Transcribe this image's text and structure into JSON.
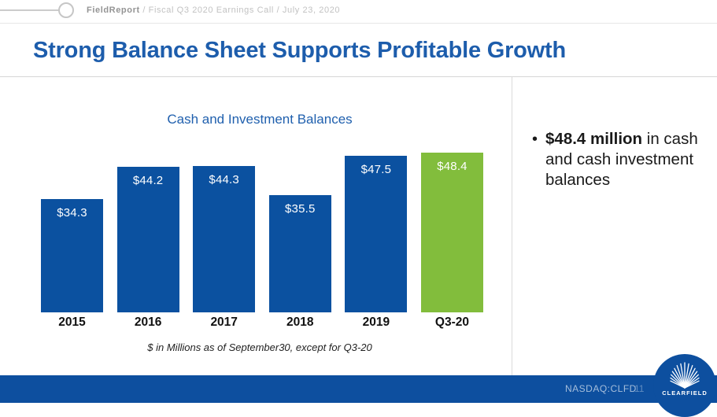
{
  "header": {
    "breadcrumb": {
      "brand": "FieldReport",
      "trail": " / Fiscal Q3 2020 Earnings Call / July 23, 2020"
    },
    "title": "Strong Balance Sheet Supports Profitable Growth"
  },
  "chart_data": {
    "type": "bar",
    "title": "Cash and Investment Balances",
    "categories": [
      "2015",
      "2016",
      "2017",
      "2018",
      "2019",
      "Q3-20"
    ],
    "values": [
      34.3,
      44.2,
      44.3,
      35.5,
      47.5,
      48.4
    ],
    "value_labels": [
      "$34.3",
      "$44.2",
      "$44.3",
      "$35.5",
      "$47.5",
      "$48.4"
    ],
    "bar_colors": [
      "#0b51a0",
      "#0b51a0",
      "#0b51a0",
      "#0b51a0",
      "#0b51a0",
      "#82bd3c"
    ],
    "bar_color": "#0b51a0",
    "highlight_color": "#82bd3c",
    "ylim": [
      0,
      50
    ],
    "grid": false,
    "legend": "none",
    "xlabel": "",
    "ylabel": "",
    "footnote": "$ in Millions as of September30, except for Q3-20"
  },
  "note": {
    "bullet": "•",
    "highlight": "$48.4 million",
    "rest": " in cash and cash investment balances"
  },
  "footer": {
    "ticker": "NASDAQ:CLFD",
    "page_number": "11",
    "logo_text": "CLEARFIELD"
  },
  "colors": {
    "title_blue": "#1d5dac",
    "bar_blue": "#0b51a0",
    "bar_green": "#82bd3c",
    "footer_blue": "#0d4f9f"
  }
}
